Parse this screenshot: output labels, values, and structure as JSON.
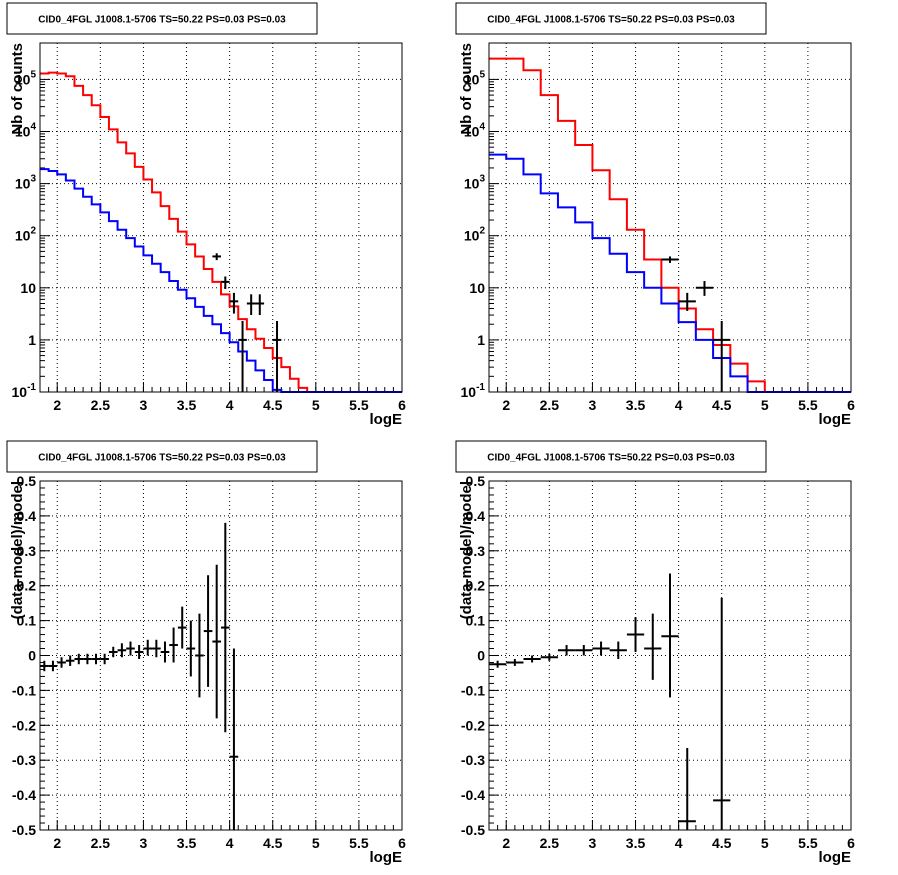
{
  "chart_data": [
    {
      "type": "step",
      "title": "CID0_4FGL J1008.1-5706 TS=50.22 PS=0.03 PS=0.03",
      "xlabel": "logE",
      "ylabel": "Nb of counts",
      "xlim": [
        1.8,
        6.0
      ],
      "ylim": [
        0.1,
        500000
      ],
      "yscale": "log",
      "grid": true,
      "x_ticks": [
        "2",
        "2.5",
        "3",
        "3.5",
        "4",
        "4.5",
        "5",
        "5.5",
        "6"
      ],
      "y_ticks": [
        "10^-1",
        "1",
        "10",
        "10^2",
        "10^3",
        "10^4",
        "10^5"
      ],
      "bin_edges": [
        1.8,
        1.9,
        2.0,
        2.1,
        2.2,
        2.3,
        2.4,
        2.5,
        2.6,
        2.7,
        2.8,
        2.9,
        3.0,
        3.1,
        3.2,
        3.3,
        3.4,
        3.5,
        3.6,
        3.7,
        3.8,
        3.9,
        4.0,
        4.1,
        4.2,
        4.3,
        4.4,
        4.5,
        4.6,
        4.7,
        4.8,
        4.9,
        5.0,
        5.1,
        5.2,
        5.3,
        5.4,
        5.5,
        5.6,
        5.7,
        5.8,
        5.9,
        6.0
      ],
      "series": [
        {
          "color": "#ff0000",
          "values": [
            130000,
            135000,
            130000,
            115000,
            75000,
            50000,
            32000,
            19000,
            11000,
            6200,
            3800,
            2100,
            1200,
            680,
            370,
            210,
            120,
            68,
            40,
            23,
            13,
            7.5,
            4.4,
            2.5,
            1.6,
            1.05,
            0.7,
            0.45,
            0.3,
            0.18,
            0.12,
            0.1,
            0.1,
            0.1,
            0.1,
            0.1,
            0.1,
            0.1,
            0.1,
            0.1,
            0.1,
            0.1
          ]
        },
        {
          "color": "#0000ff",
          "values": [
            1900,
            1750,
            1500,
            1150,
            800,
            560,
            400,
            280,
            190,
            130,
            90,
            62,
            42,
            29,
            20,
            13.5,
            9.2,
            6.3,
            4.3,
            2.9,
            2.0,
            1.35,
            0.9,
            0.6,
            0.4,
            0.26,
            0.17,
            0.11,
            0.1,
            0.1,
            0.1,
            0.1,
            0.1,
            0.1,
            0.1,
            0.1,
            0.1,
            0.1,
            0.1,
            0.1,
            0.1,
            0.1
          ]
        }
      ],
      "data_points": [
        {
          "x": 3.85,
          "y": 40,
          "xerr": 0.05,
          "ylo": 34,
          "yhi": 46
        },
        {
          "x": 3.95,
          "y": 13,
          "xerr": 0.05,
          "ylo": 9.5,
          "yhi": 16.5
        },
        {
          "x": 4.05,
          "y": 5.5,
          "xerr": 0.05,
          "ylo": 3.2,
          "yhi": 8
        },
        {
          "x": 4.15,
          "y": 1,
          "xerr": 0.05,
          "ylo": 0.1,
          "yhi": 2.3
        },
        {
          "x": 4.25,
          "y": 5,
          "xerr": 0.05,
          "ylo": 3,
          "yhi": 7.5
        },
        {
          "x": 4.35,
          "y": 5,
          "xerr": 0.05,
          "ylo": 3,
          "yhi": 7.5
        },
        {
          "x": 4.55,
          "y": 1,
          "xerr": 0.05,
          "ylo": 0.1,
          "yhi": 2.3
        }
      ]
    },
    {
      "type": "step",
      "title": "CID0_4FGL J1008.1-5706 TS=50.22 PS=0.03 PS=0.03",
      "xlabel": "logE",
      "ylabel": "Nb of counts",
      "xlim": [
        1.8,
        6.0
      ],
      "ylim": [
        0.1,
        500000
      ],
      "yscale": "log",
      "grid": true,
      "x_ticks": [
        "2",
        "2.5",
        "3",
        "3.5",
        "4",
        "4.5",
        "5",
        "5.5",
        "6"
      ],
      "y_ticks": [
        "10^-1",
        "1",
        "10",
        "10^2",
        "10^3",
        "10^4",
        "10^5"
      ],
      "bin_edges": [
        1.8,
        2.0,
        2.2,
        2.4,
        2.6,
        2.8,
        3.0,
        3.2,
        3.4,
        3.6,
        3.8,
        4.0,
        4.2,
        4.4,
        4.6,
        4.8,
        5.0,
        5.2,
        5.4,
        5.6,
        5.8,
        6.0
      ],
      "series": [
        {
          "color": "#ff0000",
          "values": [
            250000,
            250000,
            150000,
            50000,
            16000,
            5500,
            1800,
            500,
            130,
            35,
            10,
            4,
            1.6,
            0.8,
            0.35,
            0.16,
            0.1,
            0.1,
            0.1,
            0.1,
            0.1
          ]
        },
        {
          "color": "#0000ff",
          "values": [
            3600,
            3000,
            1500,
            650,
            350,
            180,
            90,
            45,
            20,
            10,
            5,
            2.2,
            1,
            0.45,
            0.2,
            0.1,
            0.1,
            0.1,
            0.1,
            0.1,
            0.1
          ]
        }
      ],
      "data_points": [
        {
          "x": 3.9,
          "y": 35,
          "xerr": 0.1,
          "ylo": 30,
          "yhi": 40
        },
        {
          "x": 4.1,
          "y": 5.5,
          "xerr": 0.1,
          "ylo": 3.6,
          "yhi": 8
        },
        {
          "x": 4.3,
          "y": 10,
          "xerr": 0.1,
          "ylo": 7,
          "yhi": 13.5
        },
        {
          "x": 4.5,
          "y": 1,
          "xerr": 0.1,
          "ylo": 0.1,
          "yhi": 2.3
        }
      ]
    },
    {
      "type": "scatter",
      "title": "CID0_4FGL J1008.1-5706 TS=50.22 PS=0.03 PS=0.03",
      "xlabel": "logE",
      "ylabel": "(data-model)/model",
      "xlim": [
        1.8,
        6.0
      ],
      "ylim": [
        -0.5,
        0.5
      ],
      "grid": true,
      "x_ticks": [
        "2",
        "2.5",
        "3",
        "3.5",
        "4",
        "4.5",
        "5",
        "5.5",
        "6"
      ],
      "y_ticks": [
        "-0.5",
        "-0.4",
        "-0.3",
        "-0.2",
        "-0.1",
        "0",
        "0.1",
        "0.2",
        "0.3",
        "0.4",
        "0.5"
      ],
      "data_points": [
        {
          "x": 1.85,
          "y": -0.03,
          "xerr": 0.05,
          "ylo": -0.045,
          "yhi": -0.015
        },
        {
          "x": 1.95,
          "y": -0.03,
          "xerr": 0.05,
          "ylo": -0.045,
          "yhi": -0.015
        },
        {
          "x": 2.05,
          "y": -0.02,
          "xerr": 0.05,
          "ylo": -0.035,
          "yhi": -0.005
        },
        {
          "x": 2.15,
          "y": -0.015,
          "xerr": 0.05,
          "ylo": -0.03,
          "yhi": 0.0
        },
        {
          "x": 2.25,
          "y": -0.01,
          "xerr": 0.05,
          "ylo": -0.025,
          "yhi": 0.005
        },
        {
          "x": 2.35,
          "y": -0.01,
          "xerr": 0.05,
          "ylo": -0.025,
          "yhi": 0.005
        },
        {
          "x": 2.45,
          "y": -0.01,
          "xerr": 0.05,
          "ylo": -0.025,
          "yhi": 0.005
        },
        {
          "x": 2.55,
          "y": -0.01,
          "xerr": 0.05,
          "ylo": -0.025,
          "yhi": 0.005
        },
        {
          "x": 2.65,
          "y": 0.01,
          "xerr": 0.05,
          "ylo": -0.005,
          "yhi": 0.025
        },
        {
          "x": 2.75,
          "y": 0.015,
          "xerr": 0.05,
          "ylo": -0.005,
          "yhi": 0.035
        },
        {
          "x": 2.85,
          "y": 0.02,
          "xerr": 0.05,
          "ylo": 0.0,
          "yhi": 0.04
        },
        {
          "x": 2.95,
          "y": 0.01,
          "xerr": 0.05,
          "ylo": -0.01,
          "yhi": 0.03
        },
        {
          "x": 3.05,
          "y": 0.02,
          "xerr": 0.05,
          "ylo": 0.0,
          "yhi": 0.045
        },
        {
          "x": 3.15,
          "y": 0.02,
          "xerr": 0.05,
          "ylo": -0.005,
          "yhi": 0.045
        },
        {
          "x": 3.25,
          "y": 0.01,
          "xerr": 0.05,
          "ylo": -0.02,
          "yhi": 0.04
        },
        {
          "x": 3.35,
          "y": 0.03,
          "xerr": 0.05,
          "ylo": -0.02,
          "yhi": 0.08
        },
        {
          "x": 3.45,
          "y": 0.08,
          "xerr": 0.05,
          "ylo": 0.02,
          "yhi": 0.14
        },
        {
          "x": 3.55,
          "y": 0.02,
          "xerr": 0.05,
          "ylo": -0.06,
          "yhi": 0.1
        },
        {
          "x": 3.65,
          "y": 0.0,
          "xerr": 0.05,
          "ylo": -0.12,
          "yhi": 0.12
        },
        {
          "x": 3.75,
          "y": 0.07,
          "xerr": 0.05,
          "ylo": -0.09,
          "yhi": 0.23
        },
        {
          "x": 3.85,
          "y": 0.04,
          "xerr": 0.05,
          "ylo": -0.18,
          "yhi": 0.26
        },
        {
          "x": 3.95,
          "y": 0.08,
          "xerr": 0.05,
          "ylo": -0.22,
          "yhi": 0.38
        },
        {
          "x": 4.05,
          "y": -0.29,
          "xerr": 0.05,
          "ylo": -0.5,
          "yhi": 0.02
        }
      ]
    },
    {
      "type": "scatter",
      "title": "CID0_4FGL J1008.1-5706 TS=50.22 PS=0.03 PS=0.03",
      "xlabel": "logE",
      "ylabel": "(data-model)/model",
      "xlim": [
        1.8,
        6.0
      ],
      "ylim": [
        -0.5,
        0.5
      ],
      "grid": true,
      "x_ticks": [
        "2",
        "2.5",
        "3",
        "3.5",
        "4",
        "4.5",
        "5",
        "5.5",
        "6"
      ],
      "y_ticks": [
        "-0.5",
        "-0.4",
        "-0.3",
        "-0.2",
        "-0.1",
        "0",
        "0.1",
        "0.2",
        "0.3",
        "0.4",
        "0.5"
      ],
      "data_points": [
        {
          "x": 1.9,
          "y": -0.025,
          "xerr": 0.1,
          "ylo": -0.035,
          "yhi": -0.015
        },
        {
          "x": 2.1,
          "y": -0.02,
          "xerr": 0.1,
          "ylo": -0.03,
          "yhi": -0.01
        },
        {
          "x": 2.3,
          "y": -0.01,
          "xerr": 0.1,
          "ylo": -0.02,
          "yhi": 0.0
        },
        {
          "x": 2.5,
          "y": -0.005,
          "xerr": 0.1,
          "ylo": -0.015,
          "yhi": 0.005
        },
        {
          "x": 2.7,
          "y": 0.015,
          "xerr": 0.1,
          "ylo": 0.0,
          "yhi": 0.03
        },
        {
          "x": 2.9,
          "y": 0.015,
          "xerr": 0.1,
          "ylo": 0.0,
          "yhi": 0.03
        },
        {
          "x": 3.1,
          "y": 0.02,
          "xerr": 0.1,
          "ylo": 0.0,
          "yhi": 0.04
        },
        {
          "x": 3.3,
          "y": 0.015,
          "xerr": 0.1,
          "ylo": -0.01,
          "yhi": 0.04
        },
        {
          "x": 3.5,
          "y": 0.06,
          "xerr": 0.1,
          "ylo": 0.01,
          "yhi": 0.11
        },
        {
          "x": 3.7,
          "y": 0.02,
          "xerr": 0.1,
          "ylo": -0.07,
          "yhi": 0.12
        },
        {
          "x": 3.9,
          "y": 0.055,
          "xerr": 0.1,
          "ylo": -0.12,
          "yhi": 0.235
        },
        {
          "x": 4.1,
          "y": -0.475,
          "xerr": 0.1,
          "ylo": -0.5,
          "yhi": -0.265
        },
        {
          "x": 4.5,
          "y": -0.415,
          "xerr": 0.1,
          "ylo": -0.5,
          "yhi": 0.165
        }
      ]
    }
  ]
}
